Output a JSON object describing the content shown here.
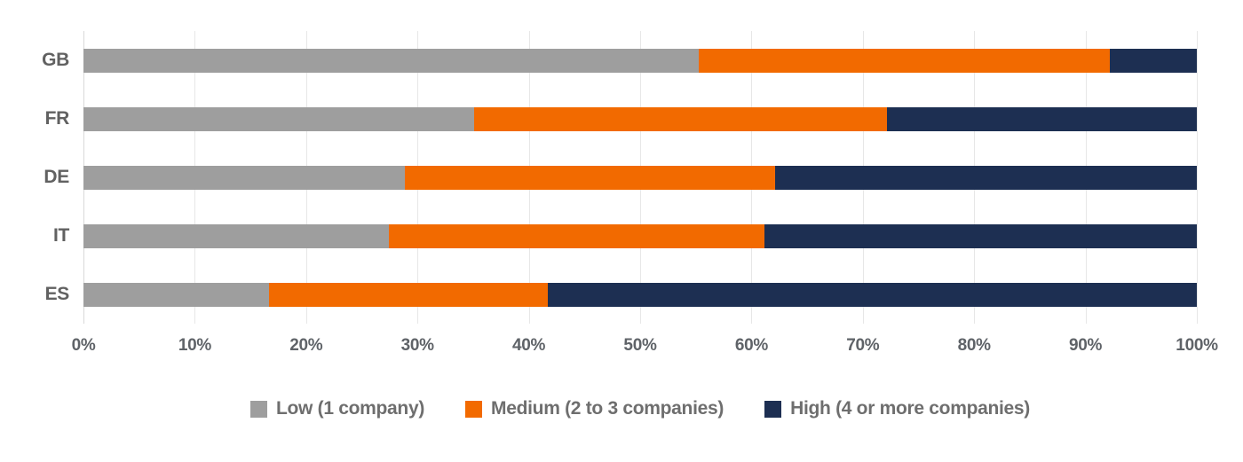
{
  "colors": {
    "low": "#9e9e9e",
    "medium": "#f26a00",
    "high": "#1d2f52",
    "grid": "#e7e7e7",
    "axis": "#d9d9d9",
    "tick_label": "#5f6368",
    "category_label": "#616161",
    "legend_text": "#6e6e6e",
    "background": "#ffffff"
  },
  "chart_data": {
    "type": "bar",
    "orientation": "horizontal",
    "stacked": true,
    "stack_total": 100,
    "title": "",
    "xlabel": "",
    "ylabel": "",
    "xlim": [
      0,
      100
    ],
    "grid": true,
    "legend_position": "bottom",
    "categories": [
      "GB",
      "FR",
      "DE",
      "IT",
      "ES"
    ],
    "series": [
      {
        "name": "Low (1 company)",
        "color_key": "low",
        "values": [
          55.3,
          35.1,
          28.9,
          27.4,
          16.7
        ]
      },
      {
        "name": "Medium (2 to 3 companies)",
        "color_key": "medium",
        "values": [
          36.9,
          37.1,
          33.2,
          33.8,
          25.0
        ]
      },
      {
        "name": "High (4 or more companies)",
        "color_key": "high",
        "values": [
          7.8,
          27.8,
          37.9,
          38.8,
          58.3
        ]
      }
    ],
    "x_ticks": [
      "0%",
      "10%",
      "20%",
      "30%",
      "40%",
      "50%",
      "60%",
      "70%",
      "80%",
      "90%",
      "100%"
    ],
    "x_tick_values": [
      0,
      10,
      20,
      30,
      40,
      50,
      60,
      70,
      80,
      90,
      100
    ]
  }
}
